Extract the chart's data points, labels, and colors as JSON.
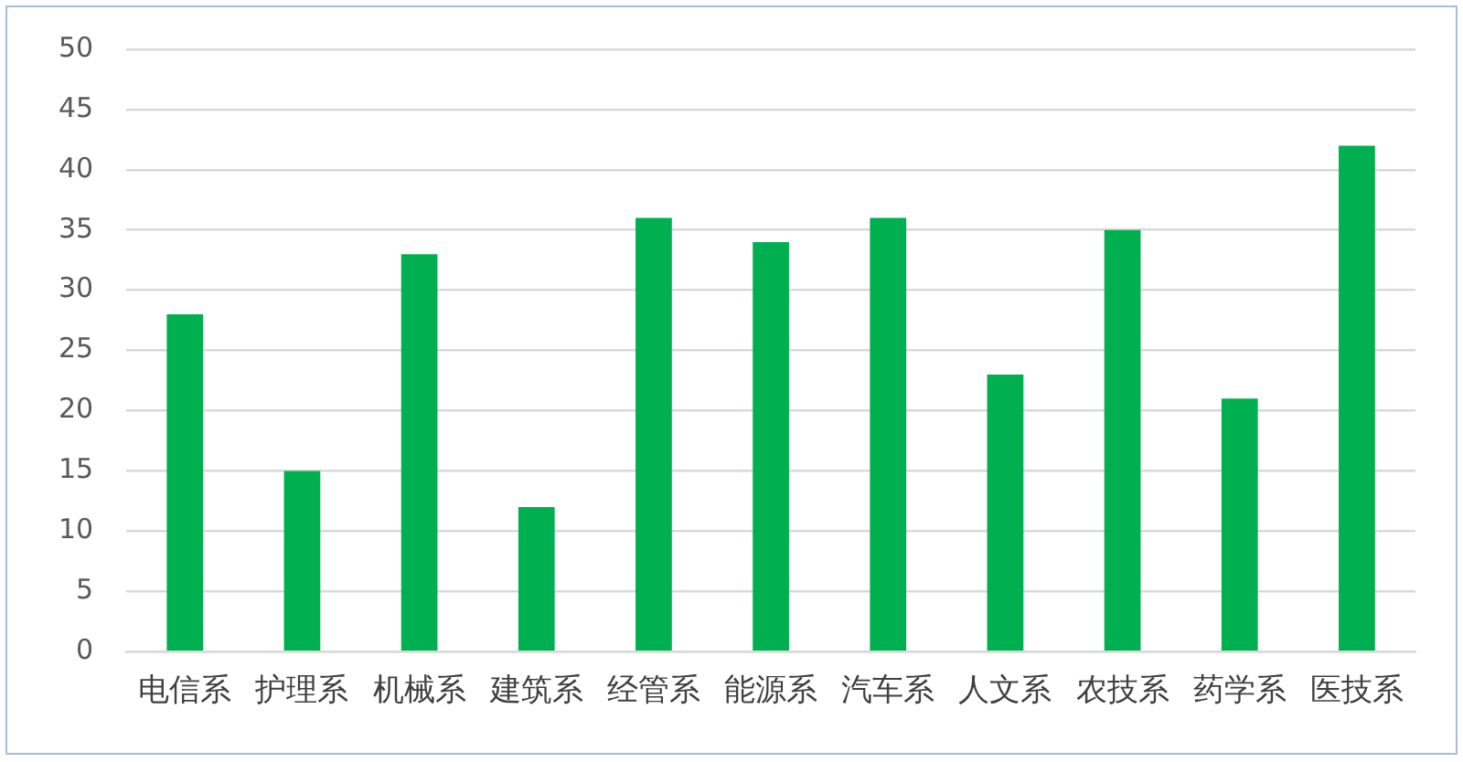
{
  "chart_data": {
    "type": "bar",
    "categories": [
      "电信系",
      "护理系",
      "机械系",
      "建筑系",
      "经管系",
      "能源系",
      "汽车系",
      "人文系",
      "农技系",
      "药学系",
      "医技系"
    ],
    "values": [
      28,
      15,
      33,
      12,
      36,
      34,
      36,
      23,
      35,
      21,
      42
    ],
    "color": "#00b050",
    "ylim": [
      0,
      50
    ],
    "yticks": [
      0,
      5,
      10,
      15,
      20,
      25,
      30,
      35,
      40,
      45,
      50
    ],
    "grid": "y"
  }
}
